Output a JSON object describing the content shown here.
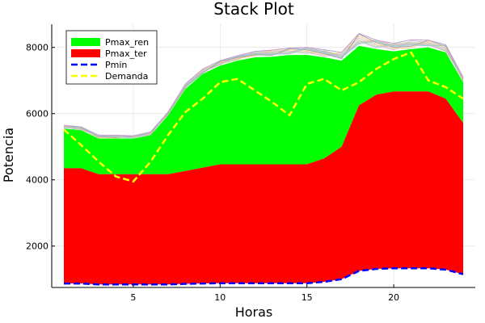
{
  "chart_data": {
    "type": "area",
    "title": "Stack Plot",
    "xlabel": "Horas",
    "ylabel": "Potencia",
    "xlim": [
      0.3,
      24.7
    ],
    "ylim": [
      750,
      8700
    ],
    "xticks": [
      5,
      10,
      15,
      20
    ],
    "yticks": [
      2000,
      4000,
      6000,
      8000
    ],
    "grid": true,
    "legend_position": "top-left",
    "x": [
      1,
      2,
      3,
      4,
      5,
      6,
      7,
      8,
      9,
      10,
      11,
      12,
      13,
      14,
      15,
      16,
      17,
      18,
      19,
      20,
      21,
      22,
      23,
      24
    ],
    "series": [
      {
        "name": "Pmax_ren",
        "color": "#00ff00",
        "style": "fill-between",
        "lower": [
          4350,
          4350,
          4170,
          4170,
          4170,
          4170,
          4170,
          4270,
          4370,
          4470,
          4470,
          4470,
          4470,
          4470,
          4470,
          4650,
          5000,
          6250,
          6570,
          6670,
          6670,
          6670,
          6450,
          5720
        ],
        "upper": [
          5550,
          5500,
          5250,
          5250,
          5250,
          5350,
          5950,
          6750,
          7200,
          7450,
          7600,
          7700,
          7720,
          7770,
          7770,
          7700,
          7600,
          8050,
          7950,
          7880,
          7950,
          8000,
          7850,
          6950
        ]
      },
      {
        "name": "Pmax_ter",
        "color": "#ff0000",
        "style": "fill-between",
        "lower": [
          870,
          870,
          840,
          840,
          840,
          840,
          840,
          860,
          870,
          880,
          880,
          880,
          880,
          880,
          880,
          920,
          1000,
          1250,
          1310,
          1330,
          1330,
          1330,
          1290,
          1150
        ],
        "upper": [
          4350,
          4350,
          4170,
          4170,
          4170,
          4170,
          4170,
          4270,
          4370,
          4470,
          4470,
          4470,
          4470,
          4470,
          4470,
          4650,
          5000,
          6250,
          6570,
          6670,
          6670,
          6670,
          6450,
          5720
        ]
      },
      {
        "name": "Pmin",
        "color": "#0000ff",
        "style": "dashed",
        "values": [
          870,
          870,
          840,
          840,
          840,
          840,
          840,
          860,
          870,
          880,
          880,
          880,
          880,
          880,
          880,
          920,
          1000,
          1250,
          1310,
          1330,
          1330,
          1330,
          1290,
          1150
        ]
      },
      {
        "name": "Demanda",
        "color": "#ffff00",
        "style": "dashed",
        "values": [
          5520,
          5050,
          4550,
          4100,
          3950,
          4550,
          5350,
          6050,
          6450,
          6950,
          7050,
          6700,
          6350,
          5950,
          6900,
          7050,
          6700,
          6950,
          7350,
          7650,
          7850,
          7000,
          6800,
          6450
        ]
      }
    ],
    "scenario_band": {
      "colors": [
        "#a6cee3",
        "#fb9a99",
        "#b2df8a",
        "#cab2d6",
        "#fdbf6f",
        "#999999",
        "#8dd3c7",
        "#bebada"
      ],
      "upper": [
        5650,
        5600,
        5350,
        5350,
        5330,
        5450,
        6050,
        6900,
        7350,
        7600,
        7750,
        7880,
        7920,
        7980,
        8000,
        7930,
        7850,
        8420,
        8220,
        8120,
        8230,
        8220,
        8080,
        7100
      ]
    }
  }
}
